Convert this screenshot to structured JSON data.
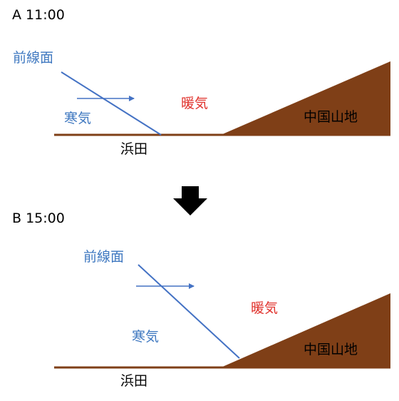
{
  "panels": [
    {
      "title": "A 11:00",
      "front_label": "前線面",
      "cold_label": "寒気",
      "warm_label": "暖気",
      "mountain_label": "中国山地",
      "place_label": "浜田"
    },
    {
      "title": "B 15:00",
      "front_label": "前線面",
      "cold_label": "寒気",
      "warm_label": "暖気",
      "mountain_label": "中国山地",
      "place_label": "浜田"
    }
  ],
  "colors": {
    "ground": "#7f3f17",
    "mountain_fill": "#7f3f17",
    "front_line": "#4472c4",
    "movement_arrow": "#4472c4",
    "transition_arrow": "#000000",
    "cold_text": "#3f78c0",
    "warm_text": "#e0312b"
  },
  "icons": {
    "movement": "arrow-right-icon",
    "transition": "arrow-down-icon"
  }
}
